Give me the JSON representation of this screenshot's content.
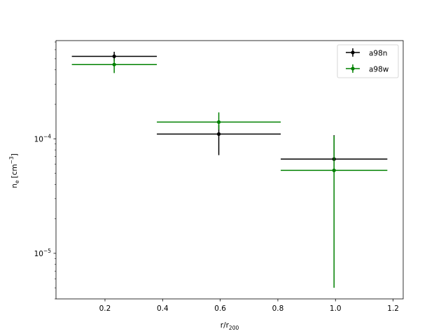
{
  "chart_data": {
    "type": "scatter",
    "title": "",
    "xlabel": "r/r",
    "xlabel_sub": "200",
    "ylabel": "n",
    "ylabel_sub": "e",
    "ylabel_unit": "[cm",
    "ylabel_unit_exp": "−3",
    "ylabel_unit_close": "]",
    "xlim": [
      0.03,
      1.235
    ],
    "ylim": [
      4e-06,
      0.00072
    ],
    "yscale": "log",
    "x_ticks": [
      {
        "value": 0.2,
        "label": "0.2"
      },
      {
        "value": 0.4,
        "label": "0.4"
      },
      {
        "value": 0.6,
        "label": "0.6"
      },
      {
        "value": 0.8,
        "label": "0.8"
      },
      {
        "value": 1.0,
        "label": "1.0"
      },
      {
        "value": 1.2,
        "label": "1.2"
      }
    ],
    "y_ticks": [
      {
        "value": 1e-05,
        "base": "10",
        "exp": "−5"
      },
      {
        "value": 0.0001,
        "base": "10",
        "exp": "−4"
      }
    ],
    "grid": false,
    "legend_position": "top-right",
    "series": [
      {
        "name": "a98n",
        "color": "#000000",
        "points": [
          {
            "x": 0.232,
            "y": 0.000525,
            "xerr": [
              0.147,
              0.148
            ],
            "yerr": [
              5e-05,
              5e-05
            ]
          },
          {
            "x": 0.595,
            "y": 0.00011,
            "xerr": [
              0.215,
              0.215
            ],
            "yerr": [
              3.8e-05,
              2.2e-05
            ]
          },
          {
            "x": 0.995,
            "y": 6.65e-05,
            "xerr": [
              0.185,
              0.185
            ],
            "yerr": [
              0.0,
              4.1e-05
            ]
          }
        ]
      },
      {
        "name": "a98w",
        "color": "#008000",
        "points": [
          {
            "x": 0.232,
            "y": 0.000445,
            "xerr": [
              0.147,
              0.148
            ],
            "yerr": [
              7e-05,
              5.5e-05
            ]
          },
          {
            "x": 0.595,
            "y": 0.00014,
            "xerr": [
              0.215,
              0.215
            ],
            "yerr": [
              2e-05,
              3e-05
            ]
          },
          {
            "x": 0.995,
            "y": 5.3e-05,
            "xerr": [
              0.185,
              0.185
            ],
            "yerr": [
              4.8e-05,
              5.3e-05
            ]
          }
        ]
      }
    ]
  }
}
